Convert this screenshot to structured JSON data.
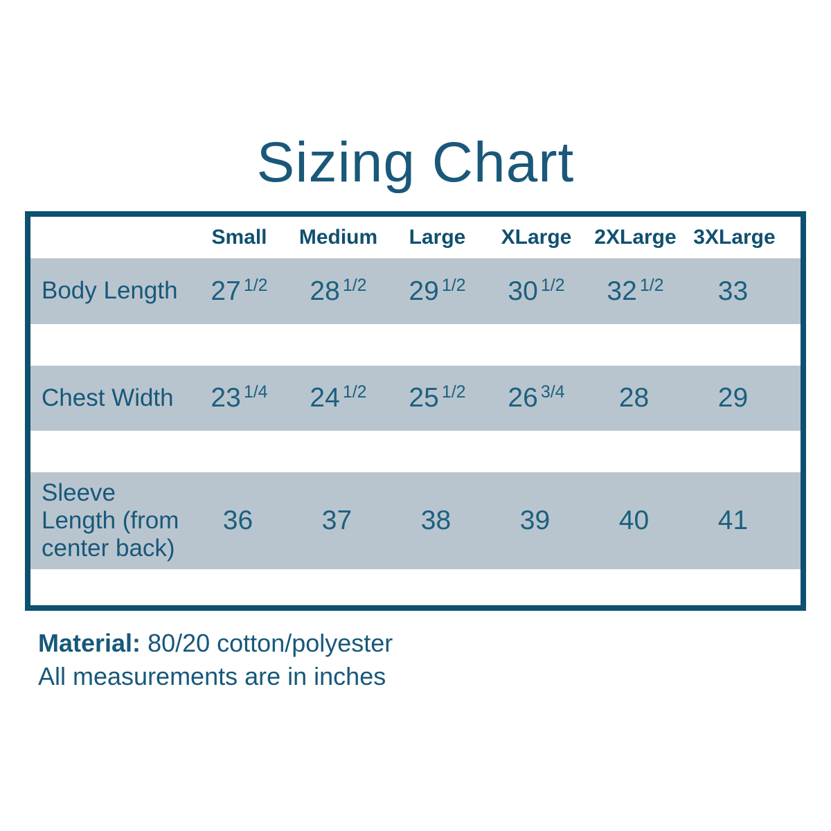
{
  "title": "Sizing Chart",
  "colors": {
    "border_teal": "#0d5070",
    "text_teal": "#17587a",
    "value_teal": "#1b607f",
    "row_gray": "#b9c5ce",
    "background": "#ffffff"
  },
  "table": {
    "columns": [
      "Small",
      "Medium",
      "Large",
      "XLarge",
      "2XLarge",
      "3XLarge"
    ],
    "rows": [
      {
        "label": "Body Length",
        "values": [
          {
            "whole": "27",
            "frac": "1/2"
          },
          {
            "whole": "28",
            "frac": "1/2"
          },
          {
            "whole": "29",
            "frac": "1/2"
          },
          {
            "whole": "30",
            "frac": "1/2"
          },
          {
            "whole": "32",
            "frac": "1/2"
          },
          {
            "whole": "33",
            "frac": null
          }
        ]
      },
      {
        "label": "Chest Width",
        "values": [
          {
            "whole": "23",
            "frac": "1/4"
          },
          {
            "whole": "24",
            "frac": "1/2"
          },
          {
            "whole": "25",
            "frac": "1/2"
          },
          {
            "whole": "26",
            "frac": "3/4"
          },
          {
            "whole": "28",
            "frac": null
          },
          {
            "whole": "29",
            "frac": null
          }
        ]
      },
      {
        "label": "Sleeve Length (from center back)",
        "values": [
          {
            "whole": "36",
            "frac": null
          },
          {
            "whole": "37",
            "frac": null
          },
          {
            "whole": "38",
            "frac": null
          },
          {
            "whole": "39",
            "frac": null
          },
          {
            "whole": "40",
            "frac": null
          },
          {
            "whole": "41",
            "frac": null
          }
        ]
      }
    ]
  },
  "footer": {
    "material_label": "Material:",
    "material_value": "80/20 cotton/polyester",
    "note": "All measurements are in inches"
  },
  "chart_data": {
    "type": "table",
    "title": "Sizing Chart",
    "columns": [
      "Small",
      "Medium",
      "Large",
      "XLarge",
      "2XLarge",
      "3XLarge"
    ],
    "rows": [
      {
        "label": "Body Length",
        "values": [
          "27 1/2",
          "28 1/2",
          "29 1/2",
          "30 1/2",
          "32 1/2",
          "33"
        ]
      },
      {
        "label": "Chest Width",
        "values": [
          "23 1/4",
          "24 1/2",
          "25 1/2",
          "26 3/4",
          "28",
          "29"
        ]
      },
      {
        "label": "Sleeve Length (from center back)",
        "values": [
          "36",
          "37",
          "38",
          "39",
          "40",
          "41"
        ]
      }
    ],
    "units": "inches",
    "notes": [
      "Material: 80/20 cotton/polyester",
      "All measurements are in inches"
    ]
  }
}
